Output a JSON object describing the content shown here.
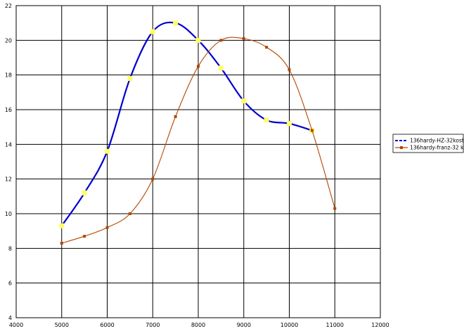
{
  "chart_data": {
    "type": "line",
    "title": "",
    "xlabel": "",
    "ylabel": "",
    "xlim": [
      4000,
      12000
    ],
    "ylim": [
      4,
      22
    ],
    "x_ticks": [
      4000,
      5000,
      6000,
      7000,
      8000,
      9000,
      10000,
      11000,
      12000
    ],
    "y_ticks": [
      4,
      6,
      8,
      10,
      12,
      14,
      16,
      18,
      20,
      22
    ],
    "grid": true,
    "legend_position": "right",
    "series": [
      {
        "name": "136hardy-HZ-32kost",
        "color": "#0000cc",
        "marker_color": "#ffff66",
        "line_style": "dashed",
        "x": [
          5000,
          5500,
          6000,
          6500,
          7000,
          7500,
          8000,
          8500,
          9000,
          9500,
          10000,
          10500
        ],
        "y": [
          9.3,
          11.2,
          13.6,
          17.8,
          20.5,
          21.0,
          20.0,
          18.4,
          16.5,
          15.4,
          15.2,
          14.8
        ]
      },
      {
        "name": "136hardy-franz-32 k",
        "color": "#b34700",
        "marker_color": "#b34700",
        "line_style": "solid",
        "x": [
          5000,
          5500,
          6000,
          6500,
          7000,
          7500,
          8000,
          8500,
          9000,
          9500,
          10000,
          10500,
          11000
        ],
        "y": [
          8.3,
          8.7,
          9.2,
          10.0,
          12.0,
          15.6,
          18.5,
          20.0,
          20.1,
          19.6,
          18.3,
          14.8,
          10.3
        ]
      }
    ]
  }
}
